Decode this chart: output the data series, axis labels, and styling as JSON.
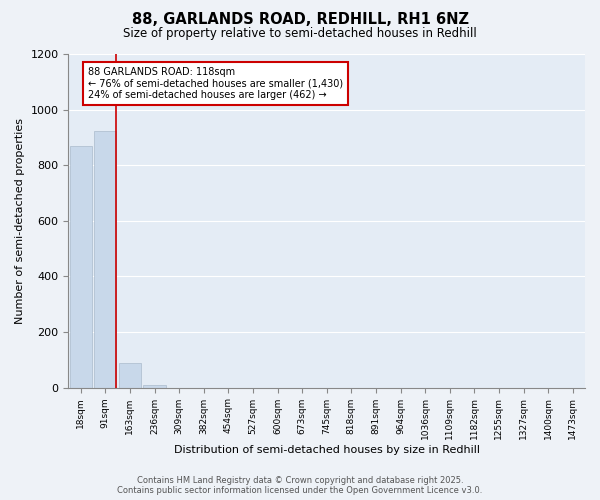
{
  "title1": "88, GARLANDS ROAD, REDHILL, RH1 6NZ",
  "title2": "Size of property relative to semi-detached houses in Redhill",
  "xlabel": "Distribution of semi-detached houses by size in Redhill",
  "ylabel": "Number of semi-detached properties",
  "bar_labels": [
    "18sqm",
    "91sqm",
    "163sqm",
    "236sqm",
    "309sqm",
    "382sqm",
    "454sqm",
    "527sqm",
    "600sqm",
    "673sqm",
    "745sqm",
    "818sqm",
    "891sqm",
    "964sqm",
    "1036sqm",
    "1109sqm",
    "1182sqm",
    "1255sqm",
    "1327sqm",
    "1400sqm",
    "1473sqm"
  ],
  "bar_values": [
    868,
    924,
    90,
    10,
    0,
    0,
    0,
    0,
    0,
    0,
    0,
    0,
    0,
    0,
    0,
    0,
    0,
    0,
    0,
    0,
    0
  ],
  "bar_color": "#c8d8ea",
  "bar_edge_color": "#aabbcc",
  "ylim": [
    0,
    1200
  ],
  "yticks": [
    0,
    200,
    400,
    600,
    800,
    1000,
    1200
  ],
  "red_line_bar_index": 1,
  "annotation_title": "88 GARLANDS ROAD: 118sqm",
  "annotation_line1": "← 76% of semi-detached houses are smaller (1,430)",
  "annotation_line2": "24% of semi-detached houses are larger (462) →",
  "annotation_color": "#cc0000",
  "footer1": "Contains HM Land Registry data © Crown copyright and database right 2025.",
  "footer2": "Contains public sector information licensed under the Open Government Licence v3.0.",
  "background_color": "#eef2f7",
  "plot_bg_color": "#e4ecf5"
}
